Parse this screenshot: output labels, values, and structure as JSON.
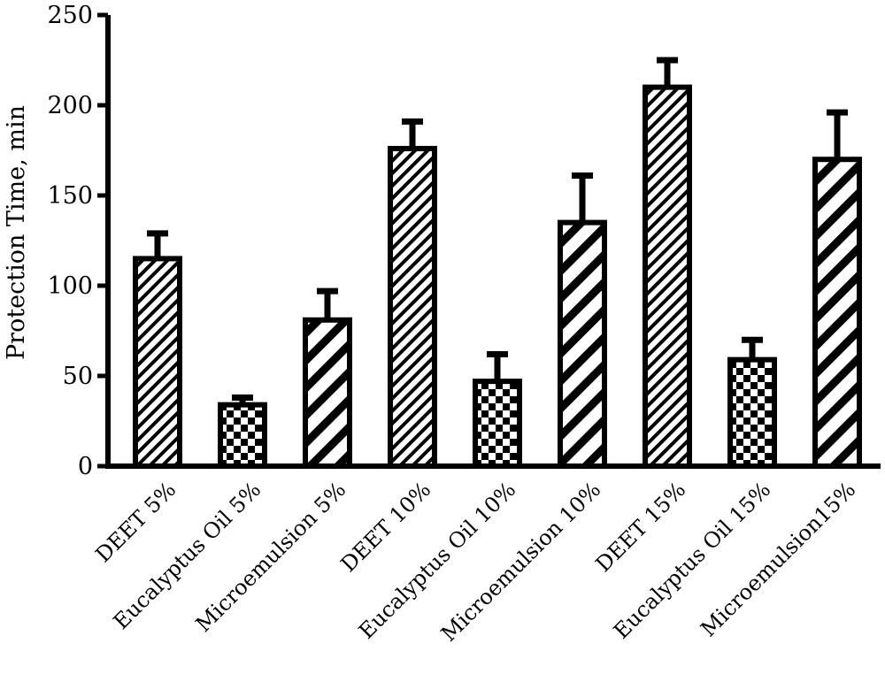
{
  "chart_data": {
    "type": "bar",
    "title": "",
    "xlabel": "",
    "ylabel": "Protection Time, min",
    "ylim": [
      0,
      250
    ],
    "yticks": [
      0,
      50,
      100,
      150,
      200,
      250
    ],
    "grid": false,
    "legend": "none",
    "categories": [
      "DEET 5%",
      "Eucalyptus Oil 5%",
      "Microemulsion 5%",
      "DEET 10%",
      "Eucalyptus Oil 10%",
      "Microemulsion 10%",
      "DEET 15%",
      "Eucalyptus Oil 15%",
      "Microemulsion15%"
    ],
    "values": [
      115,
      34,
      81,
      176,
      47,
      135,
      210,
      59,
      170
    ],
    "errors": [
      14,
      4,
      16,
      15,
      15,
      26,
      15,
      11,
      26
    ],
    "patterns": [
      "fine-diagonal",
      "checker",
      "wide-diagonal",
      "fine-diagonal",
      "checker",
      "wide-diagonal",
      "fine-diagonal",
      "checker",
      "wide-diagonal"
    ],
    "colors": {
      "ink": "#000000",
      "background": "#ffffff"
    }
  }
}
